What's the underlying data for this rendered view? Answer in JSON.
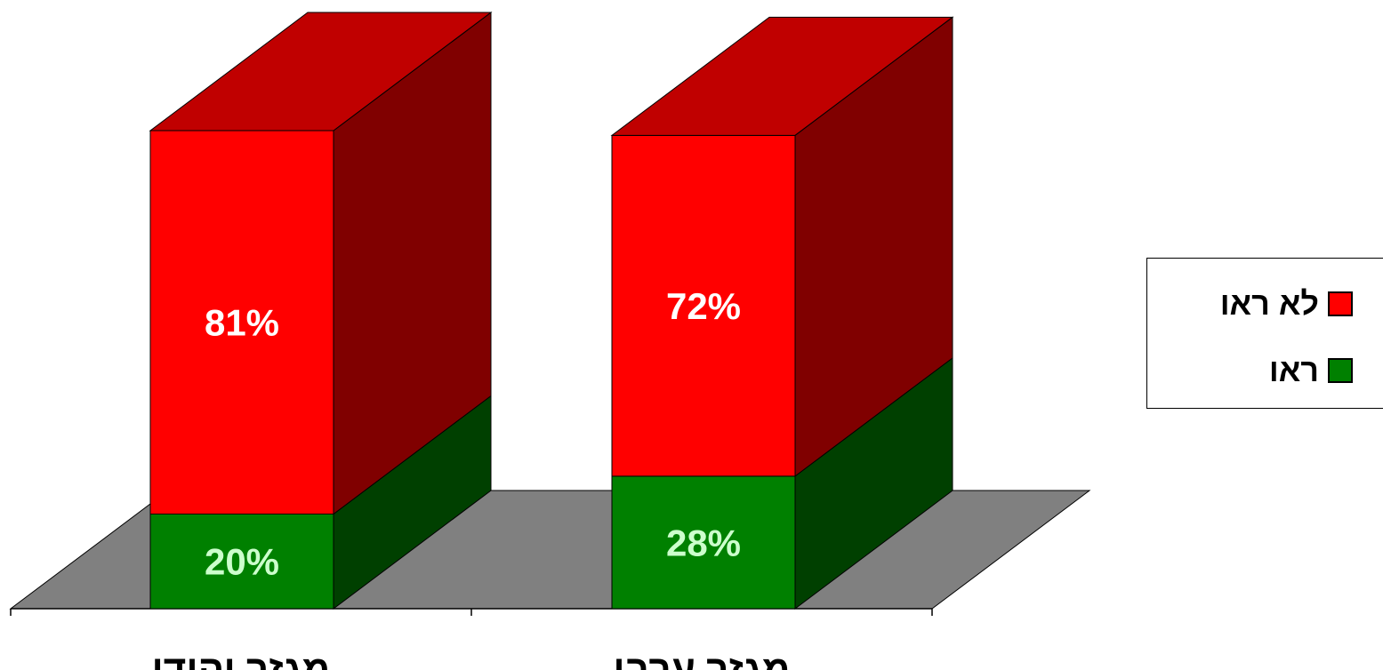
{
  "chart_data": {
    "type": "bar",
    "stacked": true,
    "three_d": true,
    "title": "",
    "xlabel": "",
    "ylabel": "",
    "categories": [
      "מגזר יהודי",
      "מגזר ערבי"
    ],
    "series": [
      {
        "name": "ראו",
        "values": [
          20,
          28
        ],
        "labels": [
          "20%",
          "28%"
        ],
        "color": "#008000",
        "side_color": "#004000"
      },
      {
        "name": "לא ראו",
        "values": [
          81,
          72
        ],
        "labels": [
          "81%",
          "72%"
        ],
        "color": "#FF0000",
        "side_color": "#800000",
        "top_color": "#C00000"
      }
    ],
    "ylim": [
      0,
      101
    ],
    "floor_color": "#808080",
    "legend_position": "right"
  },
  "legend": {
    "items": [
      {
        "label": "לא ראו",
        "color": "#FF0000"
      },
      {
        "label": "ראו",
        "color": "#008000"
      }
    ]
  }
}
